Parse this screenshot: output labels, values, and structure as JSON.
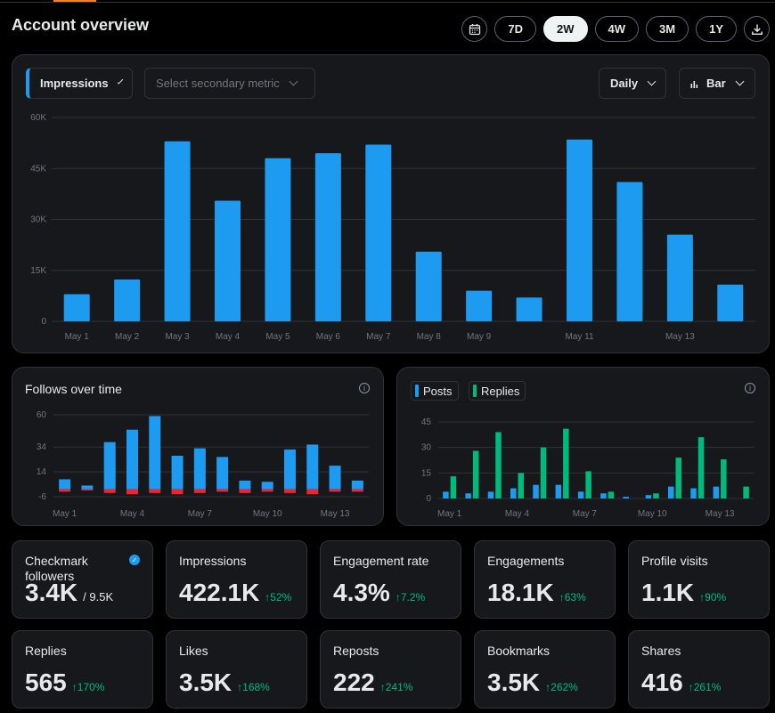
{
  "header": {
    "title": "Account overview",
    "ranges": [
      "7D",
      "2W",
      "4W",
      "3M",
      "1Y"
    ],
    "active_range": "2W",
    "calendar_icon": "calendar-icon",
    "download_icon": "download-icon"
  },
  "main_chart": {
    "primary_metric": "Impressions",
    "secondary_placeholder": "Select secondary metric",
    "interval": "Daily",
    "chart_type_label": "Bar",
    "color": "#1d9bf0"
  },
  "follows_chart": {
    "title": "Follows over time",
    "colors": {
      "gain": "#1d9bf0",
      "loss": "#f4212e"
    }
  },
  "posts_chart": {
    "legend": [
      "Posts",
      "Replies"
    ],
    "colors": {
      "posts": "#1d9bf0",
      "replies": "#00ba7c"
    }
  },
  "chart_data": [
    {
      "type": "bar",
      "categories": [
        "May 1",
        "May 2",
        "May 3",
        "May 4",
        "May 5",
        "May 6",
        "May 7",
        "May 8",
        "May 9",
        "May 10",
        "May 11",
        "May 12",
        "May 13",
        "May 14"
      ],
      "tick_labels": [
        "May 1",
        "May 2",
        "May 3",
        "May 4",
        "May 5",
        "May 6",
        "May 7",
        "May 8",
        "May 9",
        "",
        "May 11",
        "",
        "May 13",
        ""
      ],
      "values": [
        8000,
        12300,
        53000,
        35500,
        48000,
        49500,
        52000,
        20500,
        9000,
        7000,
        53500,
        41000,
        25500,
        10800
      ],
      "ylim": [
        0,
        60000
      ],
      "yticks": [
        "0",
        "15K",
        "30K",
        "45K",
        "60K"
      ],
      "ytick_values": [
        0,
        15000,
        30000,
        45000,
        60000
      ],
      "grid": true
    },
    {
      "type": "bar",
      "categories": [
        "May 1",
        "May 2",
        "May 3",
        "May 4",
        "May 5",
        "May 6",
        "May 7",
        "May 8",
        "May 9",
        "May 10",
        "May 11",
        "May 12",
        "May 13",
        "May 14"
      ],
      "tick_labels": [
        "May 1",
        "",
        "",
        "May 4",
        "",
        "",
        "May 7",
        "",
        "",
        "May 10",
        "",
        "",
        "May 13",
        ""
      ],
      "series": [
        {
          "values": [
            8,
            3,
            38,
            48,
            59,
            27,
            33,
            26,
            7,
            6,
            32,
            36,
            19,
            7
          ]
        },
        {
          "values": [
            -2,
            -1,
            -3,
            -4,
            -3,
            -4,
            -3,
            -2,
            -3,
            -2,
            -3,
            -4,
            -2,
            -2
          ]
        }
      ],
      "ylim": [
        -6,
        60
      ],
      "yticks": [
        "-6",
        "14",
        "34",
        "60"
      ],
      "ytick_values": [
        -6,
        14,
        34,
        60
      ],
      "grid": true
    },
    {
      "type": "bar",
      "categories": [
        "May 1",
        "May 2",
        "May 3",
        "May 4",
        "May 5",
        "May 6",
        "May 7",
        "May 8",
        "May 9",
        "May 10",
        "May 11",
        "May 12",
        "May 13",
        "May 14"
      ],
      "tick_labels": [
        "May 1",
        "",
        "",
        "May 4",
        "",
        "",
        "May 7",
        "",
        "",
        "May 10",
        "",
        "",
        "May 13",
        ""
      ],
      "series": [
        {
          "name": "Posts",
          "values": [
            4,
            3,
            4,
            6,
            8,
            8,
            4,
            3,
            1,
            2,
            7,
            6,
            7,
            0
          ]
        },
        {
          "name": "Replies",
          "values": [
            13,
            28,
            39,
            15,
            30,
            41,
            16,
            4,
            0,
            3,
            24,
            36,
            23,
            7
          ]
        }
      ],
      "ylim": [
        0,
        45
      ],
      "yticks": [
        "0",
        "15",
        "30",
        "45"
      ],
      "ytick_values": [
        0,
        15,
        30,
        45
      ],
      "grid": true
    }
  ],
  "stats": [
    {
      "label": "Checkmark followers",
      "value": "3.4K",
      "sub": "/ 9.5K",
      "change": "",
      "badge": "verified-icon"
    },
    {
      "label": "Impressions",
      "value": "422.1K",
      "sub": "",
      "change": "↑52%"
    },
    {
      "label": "Engagement rate",
      "value": "4.3%",
      "sub": "",
      "change": "↑7.2%"
    },
    {
      "label": "Engagements",
      "value": "18.1K",
      "sub": "",
      "change": "↑63%"
    },
    {
      "label": "Profile visits",
      "value": "1.1K",
      "sub": "",
      "change": "↑90%"
    },
    {
      "label": "Replies",
      "value": "565",
      "sub": "",
      "change": "↑170%"
    },
    {
      "label": "Likes",
      "value": "3.5K",
      "sub": "",
      "change": "↑168%"
    },
    {
      "label": "Reposts",
      "value": "222",
      "sub": "",
      "change": "↑241%"
    },
    {
      "label": "Bookmarks",
      "value": "3.5K",
      "sub": "",
      "change": "↑262%"
    },
    {
      "label": "Shares",
      "value": "416",
      "sub": "",
      "change": "↑261%"
    }
  ]
}
